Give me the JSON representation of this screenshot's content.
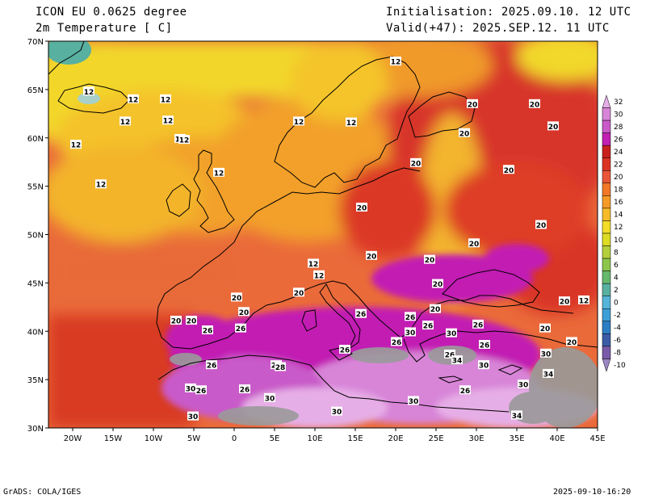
{
  "header": {
    "model": "ICON EU 0.0625 degree",
    "variable": "2m Temperature [ C]",
    "init": "Initialisation: 2025.09.10. 12 UTC",
    "valid": "Valid(+47): 2025.SEP.12. 11 UTC"
  },
  "axes": {
    "lat_labels": [
      "70N",
      "65N",
      "60N",
      "55N",
      "50N",
      "45N",
      "40N",
      "35N",
      "30N"
    ],
    "lat_values": [
      70,
      65,
      60,
      55,
      50,
      45,
      40,
      35,
      30
    ],
    "lon_labels": [
      "20W",
      "15W",
      "10W",
      "5W",
      "0",
      "5E",
      "10E",
      "15E",
      "20E",
      "25E",
      "30E",
      "35E",
      "40E",
      "45E"
    ],
    "lon_values": [
      -20,
      -15,
      -10,
      -5,
      0,
      5,
      10,
      15,
      20,
      25,
      30,
      35,
      40,
      45
    ]
  },
  "colorbar": {
    "labels": [
      "32",
      "30",
      "28",
      "26",
      "24",
      "22",
      "20",
      "18",
      "16",
      "14",
      "12",
      "10",
      "8",
      "6",
      "4",
      "2",
      "0",
      "-2",
      "-4",
      "-6",
      "-8",
      "-10"
    ],
    "colors": [
      "#e6aee6",
      "#d885d8",
      "#c95ac9",
      "#c21fb3",
      "#c8201e",
      "#dc3424",
      "#ea5538",
      "#f07828",
      "#f59a28",
      "#f7bb2a",
      "#f2dd28",
      "#dcdc22",
      "#b4cf3c",
      "#8cc64c",
      "#66b86c",
      "#58b0a0",
      "#56b4d8",
      "#3c9ed6",
      "#2e7ec4",
      "#3c5ca8",
      "#7a5aa8",
      "#9a86c2"
    ]
  },
  "contours": [
    {
      "text": "12",
      "lon": -18,
      "lat": 64.8
    },
    {
      "text": "12",
      "lon": -12.5,
      "lat": 64.0
    },
    {
      "text": "12",
      "lon": -8.5,
      "lat": 64.0
    },
    {
      "text": "12",
      "lon": -13.5,
      "lat": 61.7
    },
    {
      "text": "12",
      "lon": -8.2,
      "lat": 61.8
    },
    {
      "text": "12",
      "lon": -6.7,
      "lat": 59.9
    },
    {
      "text": "12",
      "lon": -6.2,
      "lat": 59.8
    },
    {
      "text": "12",
      "lon": -19.6,
      "lat": 59.3
    },
    {
      "text": "12",
      "lon": -16.5,
      "lat": 55.2
    },
    {
      "text": "12",
      "lon": -1.9,
      "lat": 56.4
    },
    {
      "text": "12",
      "lon": 8.0,
      "lat": 61.7
    },
    {
      "text": "12",
      "lon": 14.5,
      "lat": 61.6
    },
    {
      "text": "12",
      "lon": 20.0,
      "lat": 67.9
    },
    {
      "text": "20",
      "lon": 29.5,
      "lat": 63.5
    },
    {
      "text": "20",
      "lon": 37.2,
      "lat": 63.5
    },
    {
      "text": "20",
      "lon": 39.5,
      "lat": 61.2
    },
    {
      "text": "20",
      "lon": 28.5,
      "lat": 60.5
    },
    {
      "text": "20",
      "lon": 22.5,
      "lat": 57.4
    },
    {
      "text": "20",
      "lon": 34.0,
      "lat": 56.7
    },
    {
      "text": "20",
      "lon": 38.0,
      "lat": 51.0
    },
    {
      "text": "20",
      "lon": 15.8,
      "lat": 52.8
    },
    {
      "text": "20",
      "lon": 29.7,
      "lat": 49.1
    },
    {
      "text": "20",
      "lon": 17.0,
      "lat": 47.8
    },
    {
      "text": "12",
      "lon": 9.8,
      "lat": 47.0
    },
    {
      "text": "12",
      "lon": 10.5,
      "lat": 45.8
    },
    {
      "text": "20",
      "lon": 24.2,
      "lat": 47.4
    },
    {
      "text": "20",
      "lon": 25.2,
      "lat": 44.9
    },
    {
      "text": "20",
      "lon": 0.3,
      "lat": 43.5
    },
    {
      "text": "20",
      "lon": 8.0,
      "lat": 44.0
    },
    {
      "text": "20",
      "lon": 1.2,
      "lat": 42.0
    },
    {
      "text": "20",
      "lon": -5.3,
      "lat": 41.1
    },
    {
      "text": "20",
      "lon": -7.2,
      "lat": 41.1
    },
    {
      "text": "26",
      "lon": -3.3,
      "lat": 40.1
    },
    {
      "text": "26",
      "lon": 0.8,
      "lat": 40.3
    },
    {
      "text": "26",
      "lon": 15.7,
      "lat": 41.8
    },
    {
      "text": "26",
      "lon": 21.8,
      "lat": 41.5
    },
    {
      "text": "20",
      "lon": 24.9,
      "lat": 42.3
    },
    {
      "text": "26",
      "lon": 24.0,
      "lat": 40.6
    },
    {
      "text": "30",
      "lon": 21.8,
      "lat": 39.9
    },
    {
      "text": "26",
      "lon": 20.1,
      "lat": 38.9
    },
    {
      "text": "30",
      "lon": 26.9,
      "lat": 39.8
    },
    {
      "text": "26",
      "lon": 30.2,
      "lat": 40.7
    },
    {
      "text": "20",
      "lon": 38.5,
      "lat": 40.3
    },
    {
      "text": "20",
      "lon": 41.8,
      "lat": 38.9
    },
    {
      "text": "26",
      "lon": 31.0,
      "lat": 38.6
    },
    {
      "text": "26",
      "lon": 13.7,
      "lat": 38.1
    },
    {
      "text": "26",
      "lon": 26.7,
      "lat": 37.6
    },
    {
      "text": "34",
      "lon": 27.6,
      "lat": 37.0
    },
    {
      "text": "30",
      "lon": 30.9,
      "lat": 36.5
    },
    {
      "text": "30",
      "lon": 38.6,
      "lat": 37.7
    },
    {
      "text": "34",
      "lon": 38.9,
      "lat": 35.6
    },
    {
      "text": "30",
      "lon": 35.8,
      "lat": 34.5
    },
    {
      "text": "26",
      "lon": -2.8,
      "lat": 36.5
    },
    {
      "text": "26",
      "lon": 5.2,
      "lat": 36.5
    },
    {
      "text": "28",
      "lon": 5.7,
      "lat": 36.3
    },
    {
      "text": "30",
      "lon": -5.4,
      "lat": 34.1
    },
    {
      "text": "26",
      "lon": -4.1,
      "lat": 33.9
    },
    {
      "text": "26",
      "lon": 1.3,
      "lat": 34.0
    },
    {
      "text": "30",
      "lon": 4.4,
      "lat": 33.1
    },
    {
      "text": "26",
      "lon": 28.6,
      "lat": 33.9
    },
    {
      "text": "30",
      "lon": 22.2,
      "lat": 32.8
    },
    {
      "text": "30",
      "lon": 12.7,
      "lat": 31.7
    },
    {
      "text": "30",
      "lon": -5.1,
      "lat": 31.2
    },
    {
      "text": "34",
      "lon": 35.0,
      "lat": 31.3
    },
    {
      "text": "20",
      "lon": 40.9,
      "lat": 43.1
    },
    {
      "text": "12",
      "lon": 43.3,
      "lat": 43.2
    }
  ],
  "footer": {
    "left": "GrADS: COLA/IGES",
    "right": "2025-09-10-16:20"
  }
}
